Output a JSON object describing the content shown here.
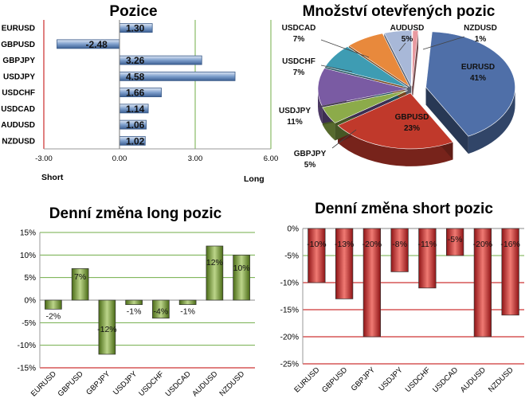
{
  "colors": {
    "bar_blue": "#4f81bd",
    "bar_green": "#6e8f2c",
    "bar_red": "#c0282d",
    "grid_green": "#70ad47",
    "grid_red": "#c00000",
    "pie": [
      "#4f6fa8",
      "#c0392b",
      "#8cab4a",
      "#7a5ba3",
      "#3e9cb3",
      "#e8893c",
      "#a8b8d8",
      "#e89aa0"
    ]
  },
  "chart_data": [
    {
      "type": "bar",
      "orientation": "horizontal",
      "title": "Pozice",
      "categories": [
        "EURUSD",
        "GBPUSD",
        "GBPJPY",
        "USDJPY",
        "USDCHF",
        "USDCAD",
        "AUDUSD",
        "NZDUSD"
      ],
      "values": [
        1.3,
        -2.48,
        3.26,
        4.58,
        1.66,
        1.14,
        1.06,
        1.02
      ],
      "value_labels": [
        "1.30",
        "-2.48",
        "3.26",
        "4.58",
        "1.66",
        "1.14",
        "1.06",
        "1.02"
      ],
      "xlim": [
        -3.0,
        6.0
      ],
      "xticks": [
        -3.0,
        0.0,
        3.0,
        6.0
      ],
      "xtick_labels": [
        "-3.00",
        "0.00",
        "3.00",
        "6.00"
      ],
      "short_label": "Short",
      "long_label": "Long"
    },
    {
      "type": "pie",
      "title": "Množství otevřených pozic",
      "categories": [
        "EURUSD",
        "GBPUSD",
        "GBPJPY",
        "USDJPY",
        "USDCHF",
        "USDCAD",
        "AUDUSD",
        "NZDUSD"
      ],
      "values": [
        41,
        23,
        5,
        11,
        7,
        7,
        5,
        1
      ],
      "value_labels": [
        "41%",
        "23%",
        "5%",
        "11%",
        "7%",
        "7%",
        "5%",
        "1%"
      ]
    },
    {
      "type": "bar",
      "title": "Denní změna long pozic",
      "categories": [
        "EURUSD",
        "GBPUSD",
        "GBPJPY",
        "USDJPY",
        "USDCHF",
        "USDCAD",
        "AUDUSD",
        "NZDUSD"
      ],
      "values": [
        -2,
        7,
        -12,
        -1,
        -4,
        -1,
        12,
        10
      ],
      "value_labels": [
        "-2%",
        "7%",
        "-12%",
        "-1%",
        "-4%",
        "-1%",
        "12%",
        "10%"
      ],
      "ylim": [
        -15,
        15
      ],
      "yticks": [
        -15,
        -10,
        -5,
        0,
        5,
        10,
        15
      ],
      "ytick_labels": [
        "-15%",
        "-10%",
        "-5%",
        "0%",
        "5%",
        "10%",
        "15%"
      ]
    },
    {
      "type": "bar",
      "title": "Denní změna short pozic",
      "categories": [
        "EURUSD",
        "GBPUSD",
        "GBPJPY",
        "USDJPY",
        "USDCHF",
        "USDCAD",
        "AUDUSD",
        "NZDUSD"
      ],
      "values": [
        -10,
        -13,
        -20,
        -8,
        -11,
        -5,
        -20,
        -16
      ],
      "value_labels": [
        "-10%",
        "-13%",
        "-20%",
        "-8%",
        "-11%",
        "-5%",
        "-20%",
        "-16%"
      ],
      "ylim": [
        -25,
        0
      ],
      "yticks": [
        -25,
        -20,
        -15,
        -10,
        -5,
        0
      ],
      "ytick_labels": [
        "-25%",
        "-20%",
        "-15%",
        "-10%",
        "-5%",
        "0%"
      ]
    }
  ]
}
